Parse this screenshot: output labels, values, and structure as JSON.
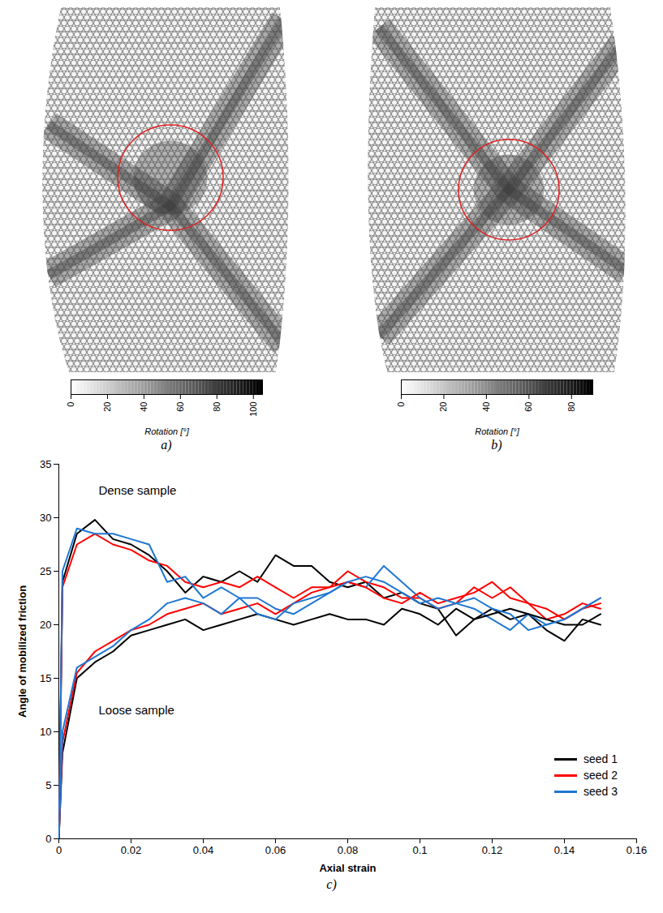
{
  "images": [
    {
      "label": "a)",
      "colorbar": {
        "label": "Rotation [°]",
        "range": [
          0,
          105
        ],
        "ticks": [
          0,
          20,
          40,
          60,
          80,
          100
        ]
      }
    },
    {
      "label": "b)",
      "colorbar": {
        "label": "Rotation [°]",
        "range": [
          0,
          90
        ],
        "ticks": [
          0,
          20,
          40,
          60,
          80
        ]
      }
    }
  ],
  "chart_data": {
    "type": "line",
    "panel_label": "c)",
    "x_label": "Axial strain",
    "y_label": "Angle of mobilized friction",
    "xlim": [
      0,
      0.16
    ],
    "ylim": [
      0,
      35
    ],
    "xticks": [
      0,
      0.02,
      0.04,
      0.06,
      0.08,
      0.1,
      0.12,
      0.14,
      0.16
    ],
    "yticks": [
      0,
      5,
      10,
      15,
      20,
      25,
      30,
      35
    ],
    "grid": false,
    "legend": "bottom-right",
    "annotations": [
      {
        "text": "Dense sample",
        "x": 0.011,
        "y": 32.5
      },
      {
        "text": "Loose sample",
        "x": 0.011,
        "y": 12
      }
    ],
    "x": [
      0,
      0.001,
      0.005,
      0.01,
      0.015,
      0.02,
      0.025,
      0.03,
      0.035,
      0.04,
      0.045,
      0.05,
      0.055,
      0.06,
      0.065,
      0.07,
      0.075,
      0.08,
      0.085,
      0.09,
      0.095,
      0.1,
      0.105,
      0.11,
      0.115,
      0.12,
      0.125,
      0.13,
      0.135,
      0.14,
      0.145,
      0.15
    ],
    "series": [
      {
        "name": "seed 1",
        "color": "#000000",
        "values": [
          0,
          24,
          28.5,
          29.8,
          28,
          27.5,
          26.5,
          25,
          23,
          24.5,
          24,
          25,
          24,
          26.5,
          25.5,
          25.5,
          24,
          23.5,
          24,
          22.5,
          23,
          22,
          21.5,
          19,
          20.5,
          21.5,
          20.5,
          21,
          19.5,
          18.5,
          20.5,
          20
        ]
      },
      {
        "name": "seed 2",
        "color": "#ff0000",
        "values": [
          0,
          23.5,
          27.5,
          28.5,
          27.5,
          27,
          26,
          25.5,
          24,
          23.5,
          24,
          23.5,
          24.5,
          23.5,
          22.5,
          23.5,
          23.5,
          25,
          24,
          23.5,
          22.5,
          22.5,
          21.5,
          22,
          23.5,
          22.5,
          23.5,
          22,
          20.5,
          21,
          22,
          21.5
        ]
      },
      {
        "name": "seed 3",
        "color": "#1f77d0",
        "values": [
          0,
          25,
          29,
          28.5,
          28.5,
          28,
          27.5,
          24,
          24.5,
          22.5,
          23.5,
          22.5,
          22.5,
          21.5,
          21,
          22,
          23,
          24,
          23.5,
          25.5,
          24,
          22.5,
          21.5,
          22,
          21.5,
          20.5,
          19.5,
          21,
          20,
          20.5,
          21.5,
          22.5
        ]
      },
      {
        "name": "seed 1",
        "color": "#000000",
        "values": [
          0,
          8,
          15,
          16.5,
          17.5,
          19,
          19.5,
          20,
          20.5,
          19.5,
          20,
          20.5,
          21,
          20.5,
          20,
          20.5,
          21,
          20.5,
          20.5,
          20,
          21.5,
          21,
          20,
          21.5,
          20.5,
          21,
          21.5,
          21,
          20.5,
          20,
          20,
          21
        ]
      },
      {
        "name": "seed 2",
        "color": "#ff0000",
        "values": [
          0,
          9,
          15.5,
          17.5,
          18.5,
          19.5,
          20,
          21,
          21.5,
          22,
          21,
          21.5,
          22,
          21,
          22,
          23,
          23.5,
          24,
          23.5,
          22.5,
          22,
          23,
          22,
          22.5,
          23,
          24,
          22.5,
          22,
          21.5,
          20.5,
          21.5,
          22
        ]
      },
      {
        "name": "seed 3",
        "color": "#1f77d0",
        "values": [
          0,
          10,
          16,
          17,
          18,
          19.5,
          20.5,
          22,
          22.5,
          22,
          21,
          22.5,
          21,
          20.5,
          22,
          22.5,
          23,
          24,
          24.5,
          24,
          23,
          22,
          22.5,
          22,
          22.5,
          21.5,
          21,
          19.5,
          20,
          20.5,
          21.5,
          22.5
        ]
      }
    ]
  }
}
